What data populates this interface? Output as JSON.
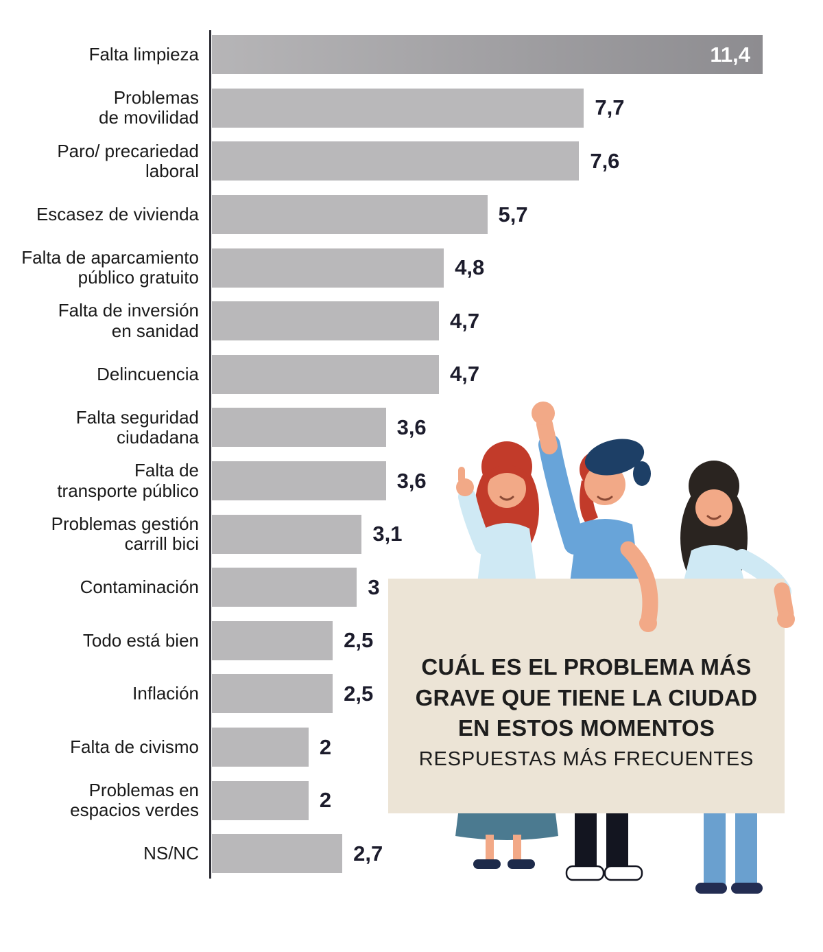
{
  "chart_data": {
    "type": "bar",
    "orientation": "horizontal",
    "title": "CUÁL ES EL PROBLEMA MÁS GRAVE QUE TIENE LA CIUDAD EN ESTOS MOMENTOS",
    "subtitle": "RESPUESTAS MÁS FRECUENTES",
    "categories": [
      "Falta limpieza",
      "Problemas de movilidad",
      "Paro/ precariedad laboral",
      "Escasez de vivienda",
      "Falta de aparcamiento público gratuito",
      "Falta de inversión en sanidad",
      "Delincuencia",
      "Falta seguridad ciudadana",
      "Falta de transporte público",
      "Problemas gestión carrill bici",
      "Contaminación",
      "Todo está bien",
      "Inflación",
      "Falta de civismo",
      "Problemas en espacios verdes",
      "NS/NC"
    ],
    "label_lines": [
      [
        "Falta limpieza"
      ],
      [
        "Problemas",
        "de movilidad"
      ],
      [
        "Paro/ precariedad",
        "laboral"
      ],
      [
        "Escasez de vivienda"
      ],
      [
        "Falta de aparcamiento",
        "público gratuito"
      ],
      [
        "Falta de inversión",
        "en sanidad"
      ],
      [
        "Delincuencia"
      ],
      [
        "Falta seguridad",
        "ciudadana"
      ],
      [
        "Falta de",
        "transporte público"
      ],
      [
        "Problemas gestión",
        "carrill bici"
      ],
      [
        "Contaminación"
      ],
      [
        "Todo está bien"
      ],
      [
        "Inflación"
      ],
      [
        "Falta de civismo"
      ],
      [
        "Problemas en",
        "espacios verdes"
      ],
      [
        "NS/NC"
      ]
    ],
    "values": [
      11.4,
      7.7,
      7.6,
      5.7,
      4.8,
      4.7,
      4.7,
      3.6,
      3.6,
      3.1,
      3,
      2.5,
      2.5,
      2,
      2,
      2.7
    ],
    "value_labels": [
      "11,4",
      "7,7",
      "7,6",
      "5,7",
      "4,8",
      "4,7",
      "4,7",
      "3,6",
      "3,6",
      "3,1",
      "3",
      "2,5",
      "2,5",
      "2",
      "2",
      "2,7"
    ],
    "highlight_index": 0,
    "xlim": [
      0,
      11.4
    ],
    "grid": false,
    "legend": false,
    "bar_color": "#b9b8ba",
    "highlight_gradient": [
      "#b6b5b7",
      "#8d8c90"
    ],
    "axis_color": "#2e2e36",
    "value_color": "#1c1c2c",
    "highlight_value_color": "#ffffff"
  },
  "sign": {
    "lines": [
      "CUÁL ES EL PROBLEMA MÁS",
      "GRAVE QUE TIENE LA CIUDAD",
      "EN ESTOS MOMENTOS",
      "RESPUESTAS MÁS FRECUENTES"
    ],
    "bg_color": "#ece4d6",
    "text_color": "#1d1d1d"
  }
}
